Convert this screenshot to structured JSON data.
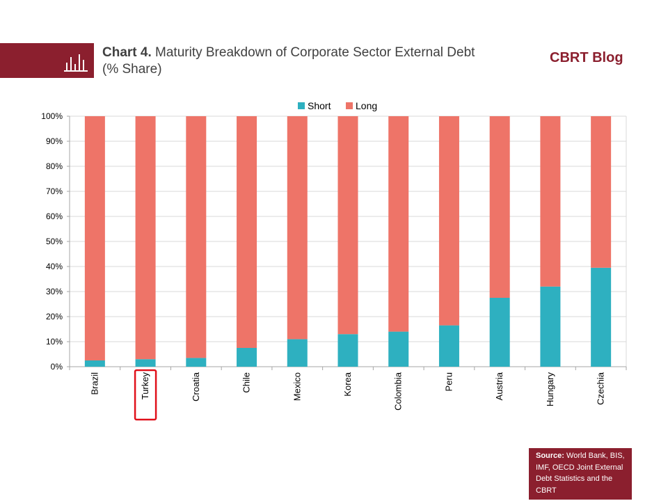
{
  "header": {
    "chart_label": "Chart 4.",
    "title_text": "Maturity Breakdown of Corporate Sector External Debt (% Share)",
    "brand": "CBRT Blog",
    "icon": "bar-chart-icon"
  },
  "source": {
    "label": "Source:",
    "text": "World Bank, BIS, IMF, OECD Joint External Debt Statistics and the CBRT"
  },
  "colors": {
    "brand": "#8b1f2e",
    "short": "#2eb0c0",
    "long": "#ee7468",
    "highlight_box": "#e0101a"
  },
  "highlighted_category": "Turkey",
  "chart_data": {
    "type": "bar",
    "stacked": true,
    "categories": [
      "Brazil",
      "Turkey",
      "Croatia",
      "Chile",
      "Mexico",
      "Korea",
      "Colombia",
      "Peru",
      "Austria",
      "Hungary",
      "Czechia"
    ],
    "series": [
      {
        "name": "Short",
        "values": [
          2.5,
          3,
          3.5,
          7.5,
          11,
          13,
          14,
          16.5,
          27.5,
          32,
          39.5
        ]
      },
      {
        "name": "Long",
        "values": [
          97.5,
          97,
          96.5,
          92.5,
          89,
          87,
          86,
          83.5,
          72.5,
          68,
          60.5
        ]
      }
    ],
    "y_ticks": [
      "0%",
      "10%",
      "20%",
      "30%",
      "40%",
      "50%",
      "60%",
      "70%",
      "80%",
      "90%",
      "100%"
    ],
    "ylim": [
      0,
      100
    ],
    "grid": true,
    "legend_position": "top-center"
  }
}
